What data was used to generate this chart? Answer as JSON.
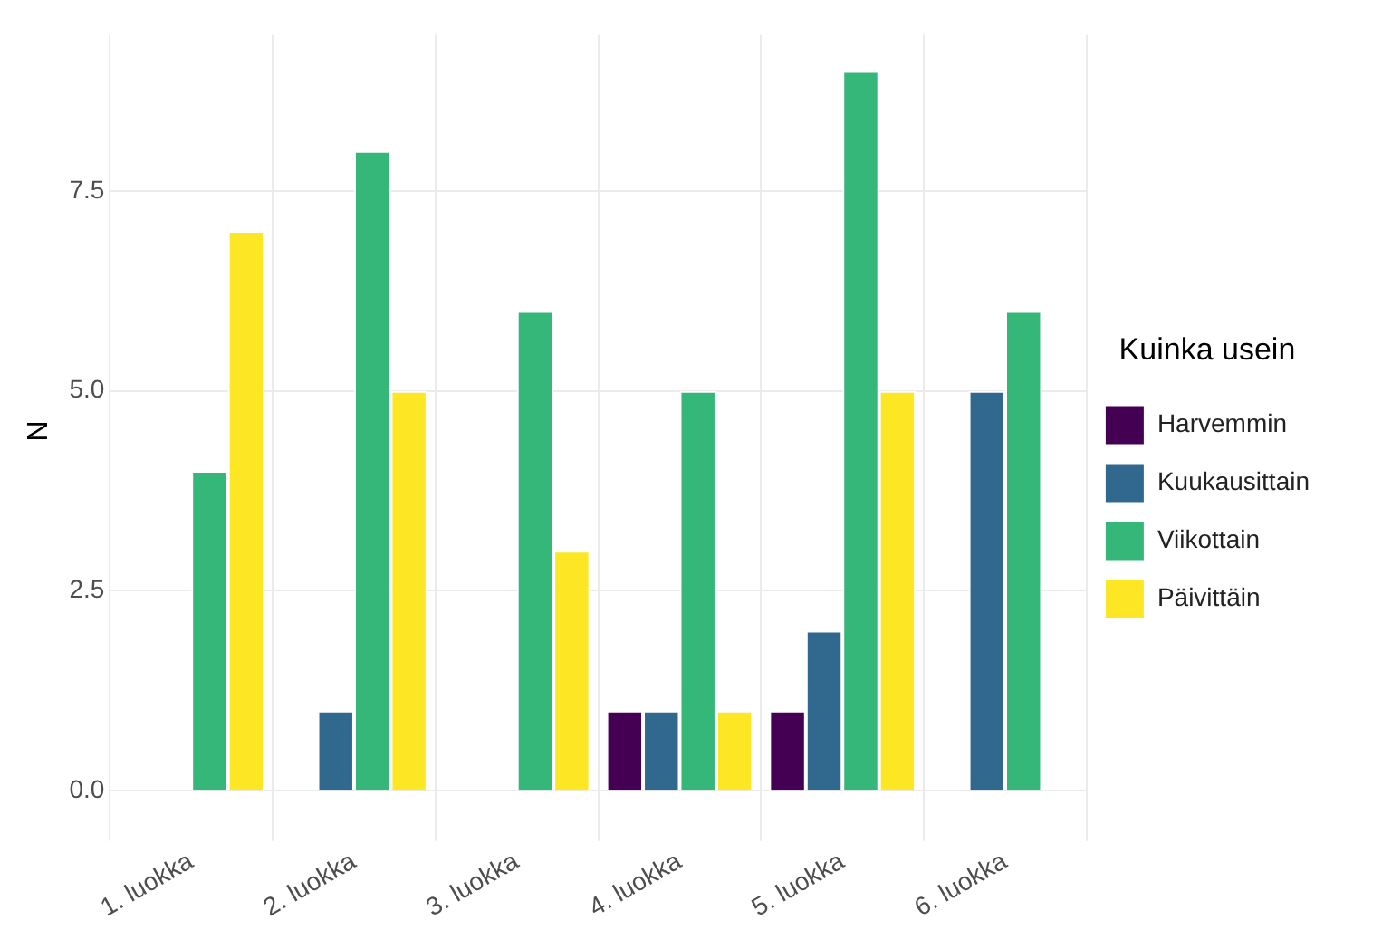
{
  "chart_data": {
    "type": "bar",
    "ylabel": "N",
    "legend_title": "Kuinka usein",
    "categories": [
      "1. luokka",
      "2. luokka",
      "3. luokka",
      "4. luokka",
      "5. luokka",
      "6. luokka"
    ],
    "series": [
      {
        "name": "Harvemmin",
        "color": "#440154",
        "values": [
          null,
          null,
          null,
          1,
          1,
          null
        ]
      },
      {
        "name": "Kuukausittain",
        "color": "#31688e",
        "values": [
          null,
          1,
          null,
          1,
          2,
          5
        ]
      },
      {
        "name": "Viikottain",
        "color": "#35b779",
        "values": [
          4,
          8,
          6,
          5,
          9,
          6
        ]
      },
      {
        "name": "Päivittäin",
        "color": "#fde725",
        "values": [
          7,
          5,
          3,
          1,
          5,
          null
        ]
      }
    ],
    "ylim": [
      -0.45,
      9.45
    ],
    "yticks": [
      {
        "value": 0,
        "label": "0.0"
      },
      {
        "value": 2.5,
        "label": "2.5"
      },
      {
        "value": 5,
        "label": "5.0"
      },
      {
        "value": 7.5,
        "label": "7.5"
      }
    ],
    "grid": true,
    "legend": "right"
  }
}
